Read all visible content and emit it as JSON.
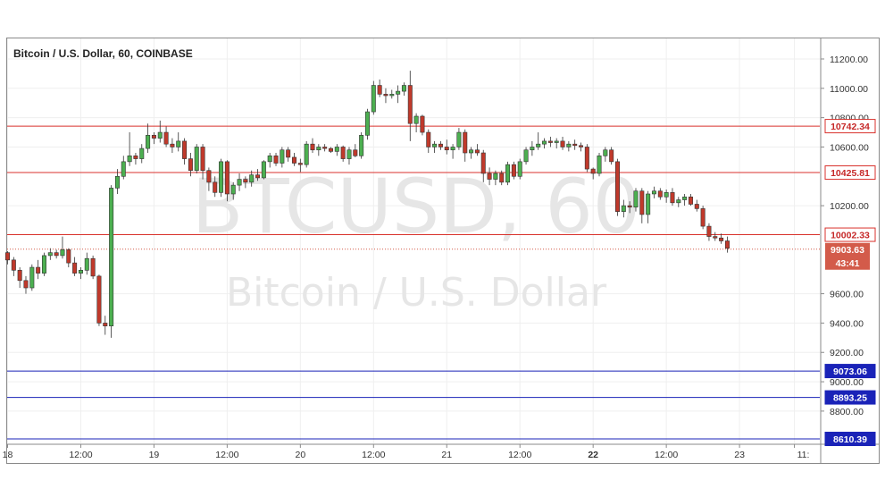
{
  "header": {
    "title": "Bitcoin / U.S. Dollar, 60, COINBASE"
  },
  "watermark": {
    "symbol": "BTCUSD, 60",
    "name": "Bitcoin / U.S. Dollar"
  },
  "colors": {
    "up": "#26a69a",
    "down": "#ef5350",
    "up_body": "#4caf50",
    "down_body": "#c0392b",
    "resistance": "#d9322c",
    "support": "#1a23b8",
    "price_tag": "#d35b4a"
  },
  "chart_data": {
    "type": "candlestick",
    "ylim": [
      8580,
      11340
    ],
    "y_ticks": [
      {
        "v": 11200,
        "label": "11200.00"
      },
      {
        "v": 11000,
        "label": "11000.00"
      },
      {
        "v": 10800,
        "label": "10800.00"
      },
      {
        "v": 10600,
        "label": "10600.00"
      },
      {
        "v": 10200,
        "label": "10200.00"
      },
      {
        "v": 9600,
        "label": "9600.00"
      },
      {
        "v": 9400,
        "label": "9400.00"
      },
      {
        "v": 9200,
        "label": "9200.00"
      },
      {
        "v": 9000,
        "label": "9000.00"
      },
      {
        "v": 8800,
        "label": "8800.00"
      }
    ],
    "x_ticks": [
      {
        "label": "18",
        "bold": false
      },
      {
        "label": "12:00",
        "bold": false
      },
      {
        "label": "19",
        "bold": false
      },
      {
        "label": "12:00",
        "bold": false
      },
      {
        "label": "20",
        "bold": false
      },
      {
        "label": "12:00",
        "bold": false
      },
      {
        "label": "21",
        "bold": false
      },
      {
        "label": "12:00",
        "bold": false
      },
      {
        "label": "22",
        "bold": true
      },
      {
        "label": "12:00",
        "bold": false
      },
      {
        "label": "23",
        "bold": false
      },
      {
        "label": "11:",
        "bold": false
      }
    ],
    "x_tick_bar_index": [
      0,
      12,
      24,
      36,
      48,
      60,
      72,
      84,
      96,
      108,
      120,
      129
    ],
    "resistance_lines": [
      10742.34,
      10425.81,
      10002.33
    ],
    "support_lines": [
      9073.06,
      8893.25,
      8610.39
    ],
    "current_price": 9903.63,
    "countdown": "43:41",
    "partial_tick_label": "9",
    "candles": [
      [
        9880,
        9890,
        9800,
        9830
      ],
      [
        9830,
        9850,
        9720,
        9760
      ],
      [
        9760,
        9780,
        9640,
        9690
      ],
      [
        9690,
        9720,
        9600,
        9640
      ],
      [
        9640,
        9800,
        9620,
        9780
      ],
      [
        9780,
        9830,
        9700,
        9740
      ],
      [
        9740,
        9880,
        9720,
        9860
      ],
      [
        9860,
        9910,
        9830,
        9880
      ],
      [
        9880,
        9900,
        9840,
        9860
      ],
      [
        9860,
        9990,
        9840,
        9900
      ],
      [
        9900,
        9910,
        9780,
        9810
      ],
      [
        9810,
        9850,
        9720,
        9740
      ],
      [
        9740,
        9780,
        9700,
        9760
      ],
      [
        9760,
        9880,
        9730,
        9840
      ],
      [
        9840,
        9860,
        9700,
        9720
      ],
      [
        9720,
        9730,
        9380,
        9400
      ],
      [
        9400,
        9450,
        9320,
        9380
      ],
      [
        9380,
        10340,
        9300,
        10320
      ],
      [
        10320,
        10450,
        10280,
        10400
      ],
      [
        10400,
        10540,
        10380,
        10500
      ],
      [
        10500,
        10700,
        10470,
        10540
      ],
      [
        10540,
        10560,
        10480,
        10520
      ],
      [
        10520,
        10620,
        10490,
        10590
      ],
      [
        10590,
        10760,
        10560,
        10680
      ],
      [
        10680,
        10700,
        10620,
        10660
      ],
      [
        10660,
        10780,
        10630,
        10700
      ],
      [
        10700,
        10740,
        10600,
        10620
      ],
      [
        10620,
        10660,
        10560,
        10600
      ],
      [
        10600,
        10700,
        10570,
        10640
      ],
      [
        10640,
        10660,
        10480,
        10520
      ],
      [
        10520,
        10560,
        10400,
        10440
      ],
      [
        10440,
        10620,
        10420,
        10600
      ],
      [
        10600,
        10620,
        10380,
        10440
      ],
      [
        10440,
        10460,
        10300,
        10360
      ],
      [
        10360,
        10400,
        10260,
        10290
      ],
      [
        10290,
        10520,
        10260,
        10500
      ],
      [
        10500,
        10510,
        10230,
        10280
      ],
      [
        10280,
        10360,
        10240,
        10340
      ],
      [
        10340,
        10420,
        10300,
        10380
      ],
      [
        10380,
        10400,
        10320,
        10360
      ],
      [
        10360,
        10440,
        10330,
        10410
      ],
      [
        10410,
        10450,
        10370,
        10390
      ],
      [
        10390,
        10510,
        10380,
        10500
      ],
      [
        10500,
        10560,
        10460,
        10540
      ],
      [
        10540,
        10560,
        10470,
        10490
      ],
      [
        10490,
        10600,
        10460,
        10580
      ],
      [
        10580,
        10600,
        10500,
        10530
      ],
      [
        10530,
        10560,
        10470,
        10490
      ],
      [
        10490,
        10520,
        10430,
        10480
      ],
      [
        10480,
        10640,
        10460,
        10620
      ],
      [
        10620,
        10660,
        10560,
        10580
      ],
      [
        10580,
        10620,
        10540,
        10600
      ],
      [
        10600,
        10620,
        10570,
        10590
      ],
      [
        10590,
        10600,
        10560,
        10570
      ],
      [
        10570,
        10620,
        10540,
        10600
      ],
      [
        10600,
        10610,
        10500,
        10520
      ],
      [
        10520,
        10600,
        10480,
        10580
      ],
      [
        10580,
        10620,
        10530,
        10540
      ],
      [
        10540,
        10700,
        10520,
        10680
      ],
      [
        10680,
        10860,
        10650,
        10840
      ],
      [
        10840,
        11050,
        10820,
        11020
      ],
      [
        11020,
        11060,
        10940,
        10960
      ],
      [
        10960,
        11000,
        10900,
        10950
      ],
      [
        10950,
        10990,
        10930,
        10960
      ],
      [
        10960,
        11020,
        10900,
        10980
      ],
      [
        10980,
        11040,
        10950,
        11020
      ],
      [
        11020,
        11120,
        10640,
        10760
      ],
      [
        10760,
        10830,
        10700,
        10810
      ],
      [
        10810,
        10820,
        10680,
        10700
      ],
      [
        10700,
        10720,
        10560,
        10600
      ],
      [
        10600,
        10640,
        10560,
        10620
      ],
      [
        10620,
        10640,
        10580,
        10600
      ],
      [
        10600,
        10650,
        10550,
        10580
      ],
      [
        10580,
        10620,
        10520,
        10600
      ],
      [
        10600,
        10730,
        10580,
        10700
      ],
      [
        10700,
        10720,
        10500,
        10560
      ],
      [
        10560,
        10600,
        10520,
        10580
      ],
      [
        10580,
        10620,
        10540,
        10560
      ],
      [
        10560,
        10580,
        10360,
        10420
      ],
      [
        10420,
        10460,
        10340,
        10380
      ],
      [
        10380,
        10440,
        10340,
        10420
      ],
      [
        10420,
        10440,
        10340,
        10360
      ],
      [
        10360,
        10500,
        10340,
        10480
      ],
      [
        10480,
        10500,
        10380,
        10400
      ],
      [
        10400,
        10520,
        10380,
        10500
      ],
      [
        10500,
        10600,
        10480,
        10580
      ],
      [
        10580,
        10640,
        10540,
        10600
      ],
      [
        10600,
        10700,
        10580,
        10620
      ],
      [
        10620,
        10660,
        10590,
        10640
      ],
      [
        10640,
        10670,
        10600,
        10630
      ],
      [
        10630,
        10660,
        10590,
        10640
      ],
      [
        10640,
        10670,
        10580,
        10600
      ],
      [
        10600,
        10640,
        10570,
        10620
      ],
      [
        10620,
        10650,
        10580,
        10610
      ],
      [
        10610,
        10630,
        10570,
        10600
      ],
      [
        10600,
        10620,
        10430,
        10450
      ],
      [
        10450,
        10460,
        10380,
        10420
      ],
      [
        10420,
        10560,
        10400,
        10540
      ],
      [
        10540,
        10600,
        10500,
        10580
      ],
      [
        10580,
        10600,
        10480,
        10500
      ],
      [
        10500,
        10520,
        10130,
        10160
      ],
      [
        10160,
        10240,
        10120,
        10200
      ],
      [
        10200,
        10230,
        10150,
        10190
      ],
      [
        10190,
        10320,
        10160,
        10300
      ],
      [
        10300,
        10320,
        10080,
        10140
      ],
      [
        10140,
        10300,
        10080,
        10280
      ],
      [
        10280,
        10330,
        10250,
        10300
      ],
      [
        10300,
        10320,
        10240,
        10260
      ],
      [
        10260,
        10310,
        10220,
        10290
      ],
      [
        10290,
        10320,
        10200,
        10220
      ],
      [
        10220,
        10260,
        10190,
        10240
      ],
      [
        10240,
        10280,
        10200,
        10260
      ],
      [
        10260,
        10280,
        10200,
        10210
      ],
      [
        10210,
        10240,
        10160,
        10180
      ],
      [
        10180,
        10200,
        10040,
        10060
      ],
      [
        10060,
        10080,
        9960,
        9990
      ],
      [
        9990,
        10020,
        9960,
        9980
      ],
      [
        9980,
        10010,
        9940,
        9960
      ],
      [
        9960,
        9990,
        9880,
        9910
      ]
    ]
  }
}
